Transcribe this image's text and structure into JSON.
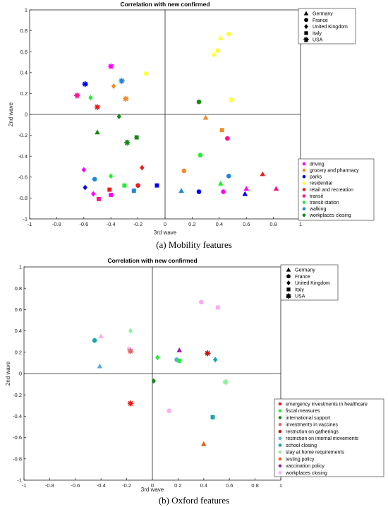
{
  "chart_data": [
    {
      "type": "scatter",
      "title": "Correlation with new confirmed",
      "xlabel": "3rd wave",
      "ylabel": "2nd wave",
      "xlim": [
        -1,
        1
      ],
      "ylim": [
        -1,
        1
      ],
      "xticks": [
        "-1",
        "-0.8",
        "-0.6",
        "-0.4",
        "-0.2",
        "0",
        "0.2",
        "0.4",
        "0.6",
        "0.8",
        "1"
      ],
      "yticks": [
        "1",
        "0.8",
        "0.6",
        "0.4",
        "0.2",
        "0",
        "-0.2",
        "-0.4",
        "-0.6",
        "-0.8",
        "-1"
      ],
      "grid": false,
      "zero_lines": true,
      "shape_legend": {
        "position": "top-right",
        "entries": [
          {
            "marker": "triangle",
            "label": "Germany"
          },
          {
            "marker": "circle",
            "label": "France"
          },
          {
            "marker": "diamond",
            "label": "United Kingdom"
          },
          {
            "marker": "square",
            "label": "Italy"
          },
          {
            "marker": "star",
            "label": "USA"
          }
        ]
      },
      "color_legend": {
        "position": "bottom-right",
        "entries": [
          {
            "label": "driving",
            "color": "#ff00ff"
          },
          {
            "label": "grocery and pharmacy",
            "color": "#f08a24"
          },
          {
            "label": "parks",
            "color": "#0000ee"
          },
          {
            "label": "residential",
            "color": "#ffff33"
          },
          {
            "label": "retail and recreation",
            "color": "#ee1c1c"
          },
          {
            "label": "transit",
            "color": "#ff1493"
          },
          {
            "label": "transit station",
            "color": "#22ee33"
          },
          {
            "label": "walking",
            "color": "#1f86d8"
          },
          {
            "label": "workplaces closing",
            "color": "#138a13"
          }
        ]
      },
      "points": [
        {
          "x": 0.41,
          "y": 0.73,
          "marker": "triangle",
          "color": "#ffff33"
        },
        {
          "x": 0.47,
          "y": 0.77,
          "marker": "circle",
          "color": "#ffff33"
        },
        {
          "x": 0.36,
          "y": 0.57,
          "marker": "diamond",
          "color": "#ffff33"
        },
        {
          "x": 0.39,
          "y": 0.61,
          "marker": "square",
          "color": "#ffff33"
        },
        {
          "x": -0.14,
          "y": 0.39,
          "marker": "circle",
          "color": "#ffff33"
        },
        {
          "x": 0.49,
          "y": 0.14,
          "marker": "star",
          "color": "#ffff33"
        },
        {
          "x": -0.4,
          "y": 0.46,
          "marker": "star",
          "color": "#ff00ff"
        },
        {
          "x": -0.59,
          "y": 0.29,
          "marker": "star",
          "color": "#0000ee"
        },
        {
          "x": -0.32,
          "y": 0.32,
          "marker": "star",
          "color": "#1f86d8"
        },
        {
          "x": -0.38,
          "y": 0.27,
          "marker": "diamond",
          "color": "#f08a24"
        },
        {
          "x": -0.29,
          "y": 0.15,
          "marker": "star",
          "color": "#f08a24"
        },
        {
          "x": -0.65,
          "y": 0.18,
          "marker": "star",
          "color": "#ff1493"
        },
        {
          "x": -0.55,
          "y": 0.16,
          "marker": "diamond",
          "color": "#22ee33"
        },
        {
          "x": -0.5,
          "y": 0.07,
          "marker": "star",
          "color": "#ee1c1c"
        },
        {
          "x": 0.25,
          "y": 0.12,
          "marker": "circle",
          "color": "#138a13"
        },
        {
          "x": -0.34,
          "y": -0.02,
          "marker": "diamond",
          "color": "#138a13"
        },
        {
          "x": 0.3,
          "y": -0.03,
          "marker": "triangle",
          "color": "#f08a24"
        },
        {
          "x": -0.5,
          "y": -0.17,
          "marker": "triangle",
          "color": "#138a13"
        },
        {
          "x": -0.28,
          "y": -0.27,
          "marker": "star",
          "color": "#138a13"
        },
        {
          "x": -0.21,
          "y": -0.22,
          "marker": "square",
          "color": "#138a13"
        },
        {
          "x": 0.42,
          "y": -0.15,
          "marker": "square",
          "color": "#f08a24"
        },
        {
          "x": 0.46,
          "y": -0.23,
          "marker": "circle",
          "color": "#ff1493"
        },
        {
          "x": 0.26,
          "y": -0.39,
          "marker": "circle",
          "color": "#22ee33"
        },
        {
          "x": 0.14,
          "y": -0.54,
          "marker": "circle",
          "color": "#f08a24"
        },
        {
          "x": 0.47,
          "y": -0.59,
          "marker": "circle",
          "color": "#1f86d8"
        },
        {
          "x": 0.41,
          "y": -0.66,
          "marker": "triangle",
          "color": "#22ee33"
        },
        {
          "x": 0.72,
          "y": -0.57,
          "marker": "triangle",
          "color": "#ee1c1c"
        },
        {
          "x": 0.82,
          "y": -0.71,
          "marker": "triangle",
          "color": "#ff1493"
        },
        {
          "x": 0.6,
          "y": -0.71,
          "marker": "triangle",
          "color": "#ff00ff"
        },
        {
          "x": 0.59,
          "y": -0.76,
          "marker": "triangle",
          "color": "#0000ee"
        },
        {
          "x": 0.43,
          "y": -0.74,
          "marker": "circle",
          "color": "#ff00ff"
        },
        {
          "x": 0.25,
          "y": -0.74,
          "marker": "circle",
          "color": "#0000ee"
        },
        {
          "x": 0.12,
          "y": -0.73,
          "marker": "triangle",
          "color": "#1f86d8"
        },
        {
          "x": -0.6,
          "y": -0.53,
          "marker": "diamond",
          "color": "#ff00ff"
        },
        {
          "x": -0.4,
          "y": -0.59,
          "marker": "diamond",
          "color": "#22ee33"
        },
        {
          "x": -0.17,
          "y": -0.51,
          "marker": "diamond",
          "color": "#ee1c1c"
        },
        {
          "x": -0.52,
          "y": -0.62,
          "marker": "circle",
          "color": "#1f86d8"
        },
        {
          "x": -0.59,
          "y": -0.7,
          "marker": "diamond",
          "color": "#0000ee"
        },
        {
          "x": -0.53,
          "y": -0.76,
          "marker": "diamond",
          "color": "#ff00ff"
        },
        {
          "x": -0.49,
          "y": -0.81,
          "marker": "square",
          "color": "#ff1493"
        },
        {
          "x": -0.41,
          "y": -0.72,
          "marker": "square",
          "color": "#ee1c1c"
        },
        {
          "x": -0.4,
          "y": -0.77,
          "marker": "square",
          "color": "#ff00ff"
        },
        {
          "x": -0.3,
          "y": -0.68,
          "marker": "square",
          "color": "#22ee33"
        },
        {
          "x": -0.23,
          "y": -0.73,
          "marker": "square",
          "color": "#1f86d8"
        },
        {
          "x": -0.2,
          "y": -0.68,
          "marker": "circle",
          "color": "#ee1c1c"
        },
        {
          "x": -0.06,
          "y": -0.68,
          "marker": "square",
          "color": "#0000ee"
        }
      ]
    },
    {
      "type": "scatter",
      "title": "Correlation with new confirmed",
      "xlabel": "3rd wave",
      "ylabel": "2nd wave",
      "xlim": [
        -1,
        1
      ],
      "ylim": [
        -1,
        1
      ],
      "xticks": [
        "-1",
        "-0.8",
        "-0.6",
        "-0.4",
        "-0.2",
        "0",
        "0.2",
        "0.4",
        "0.6",
        "0.8",
        "1"
      ],
      "yticks": [
        "1",
        "0.8",
        "0.6",
        "0.4",
        "0.2",
        "0",
        "-0.2",
        "-0.4",
        "-0.6",
        "-0.8",
        "-1"
      ],
      "grid": false,
      "zero_lines": true,
      "shape_legend": {
        "position": "top-right",
        "entries": [
          {
            "marker": "triangle",
            "label": "Germany"
          },
          {
            "marker": "circle",
            "label": "France"
          },
          {
            "marker": "diamond",
            "label": "United Kingdom"
          },
          {
            "marker": "square",
            "label": "Italy"
          },
          {
            "marker": "star",
            "label": "USA"
          }
        ]
      },
      "color_legend": {
        "position": "bottom-right",
        "entries": [
          {
            "label": "emergency investments in healthcare",
            "color": "#ee1c1c"
          },
          {
            "label": "fiscal measures",
            "color": "#22ee33"
          },
          {
            "label": "international support",
            "color": "#138a13"
          },
          {
            "label": "investments in vaccines",
            "color": "#e06a6a"
          },
          {
            "label": "restriction on gatherings",
            "color": "#cc1111"
          },
          {
            "label": "restriction on internal movements",
            "color": "#5aaed8"
          },
          {
            "label": "school closing",
            "color": "#17a5a5"
          },
          {
            "label": "stay at home requirements",
            "color": "#8fef9c"
          },
          {
            "label": "testing policy",
            "color": "#e0601a"
          },
          {
            "label": "vaccination policy",
            "color": "#9b1fa8"
          },
          {
            "label": "workplaces closing",
            "color": "#ffaaf2"
          }
        ]
      },
      "points": [
        {
          "x": 0.38,
          "y": 0.67,
          "marker": "circle",
          "color": "#ffaaf2"
        },
        {
          "x": 0.51,
          "y": 0.62,
          "marker": "square",
          "color": "#ffaaf2"
        },
        {
          "x": -0.4,
          "y": 0.35,
          "marker": "triangle",
          "color": "#ffaaf2"
        },
        {
          "x": -0.17,
          "y": 0.4,
          "marker": "diamond",
          "color": "#8fef9c"
        },
        {
          "x": -0.45,
          "y": 0.31,
          "marker": "circle",
          "color": "#17a5a5"
        },
        {
          "x": -0.18,
          "y": 0.23,
          "marker": "circle",
          "color": "#ffaaf2"
        },
        {
          "x": -0.17,
          "y": 0.21,
          "marker": "star",
          "color": "#e06a6a"
        },
        {
          "x": 0.04,
          "y": 0.15,
          "marker": "diamond",
          "color": "#22ee33"
        },
        {
          "x": 0.21,
          "y": 0.22,
          "marker": "triangle",
          "color": "#9b1fa8"
        },
        {
          "x": 0.19,
          "y": 0.13,
          "marker": "circle",
          "color": "#5aaed8"
        },
        {
          "x": 0.21,
          "y": 0.12,
          "marker": "square",
          "color": "#22ee33"
        },
        {
          "x": 0.43,
          "y": 0.19,
          "marker": "star",
          "color": "#cc1111"
        },
        {
          "x": 0.49,
          "y": 0.13,
          "marker": "diamond",
          "color": "#17a5a5"
        },
        {
          "x": -0.41,
          "y": 0.07,
          "marker": "triangle",
          "color": "#5aaed8"
        },
        {
          "x": 0.01,
          "y": -0.07,
          "marker": "diamond",
          "color": "#138a13"
        },
        {
          "x": 0.57,
          "y": -0.08,
          "marker": "star",
          "color": "#8fef9c"
        },
        {
          "x": -0.17,
          "y": -0.28,
          "marker": "star",
          "color": "#ee1c1c"
        },
        {
          "x": 0.13,
          "y": -0.35,
          "marker": "circle",
          "color": "#ffaaf2"
        },
        {
          "x": 0.47,
          "y": -0.41,
          "marker": "square",
          "color": "#17a5a5"
        },
        {
          "x": 0.4,
          "y": -0.66,
          "marker": "triangle",
          "color": "#e0601a"
        }
      ]
    }
  ],
  "captions": {
    "a_label": "(a)",
    "a_text": "Mobility features",
    "b_label": "(b)",
    "b_text": "Oxford features"
  }
}
